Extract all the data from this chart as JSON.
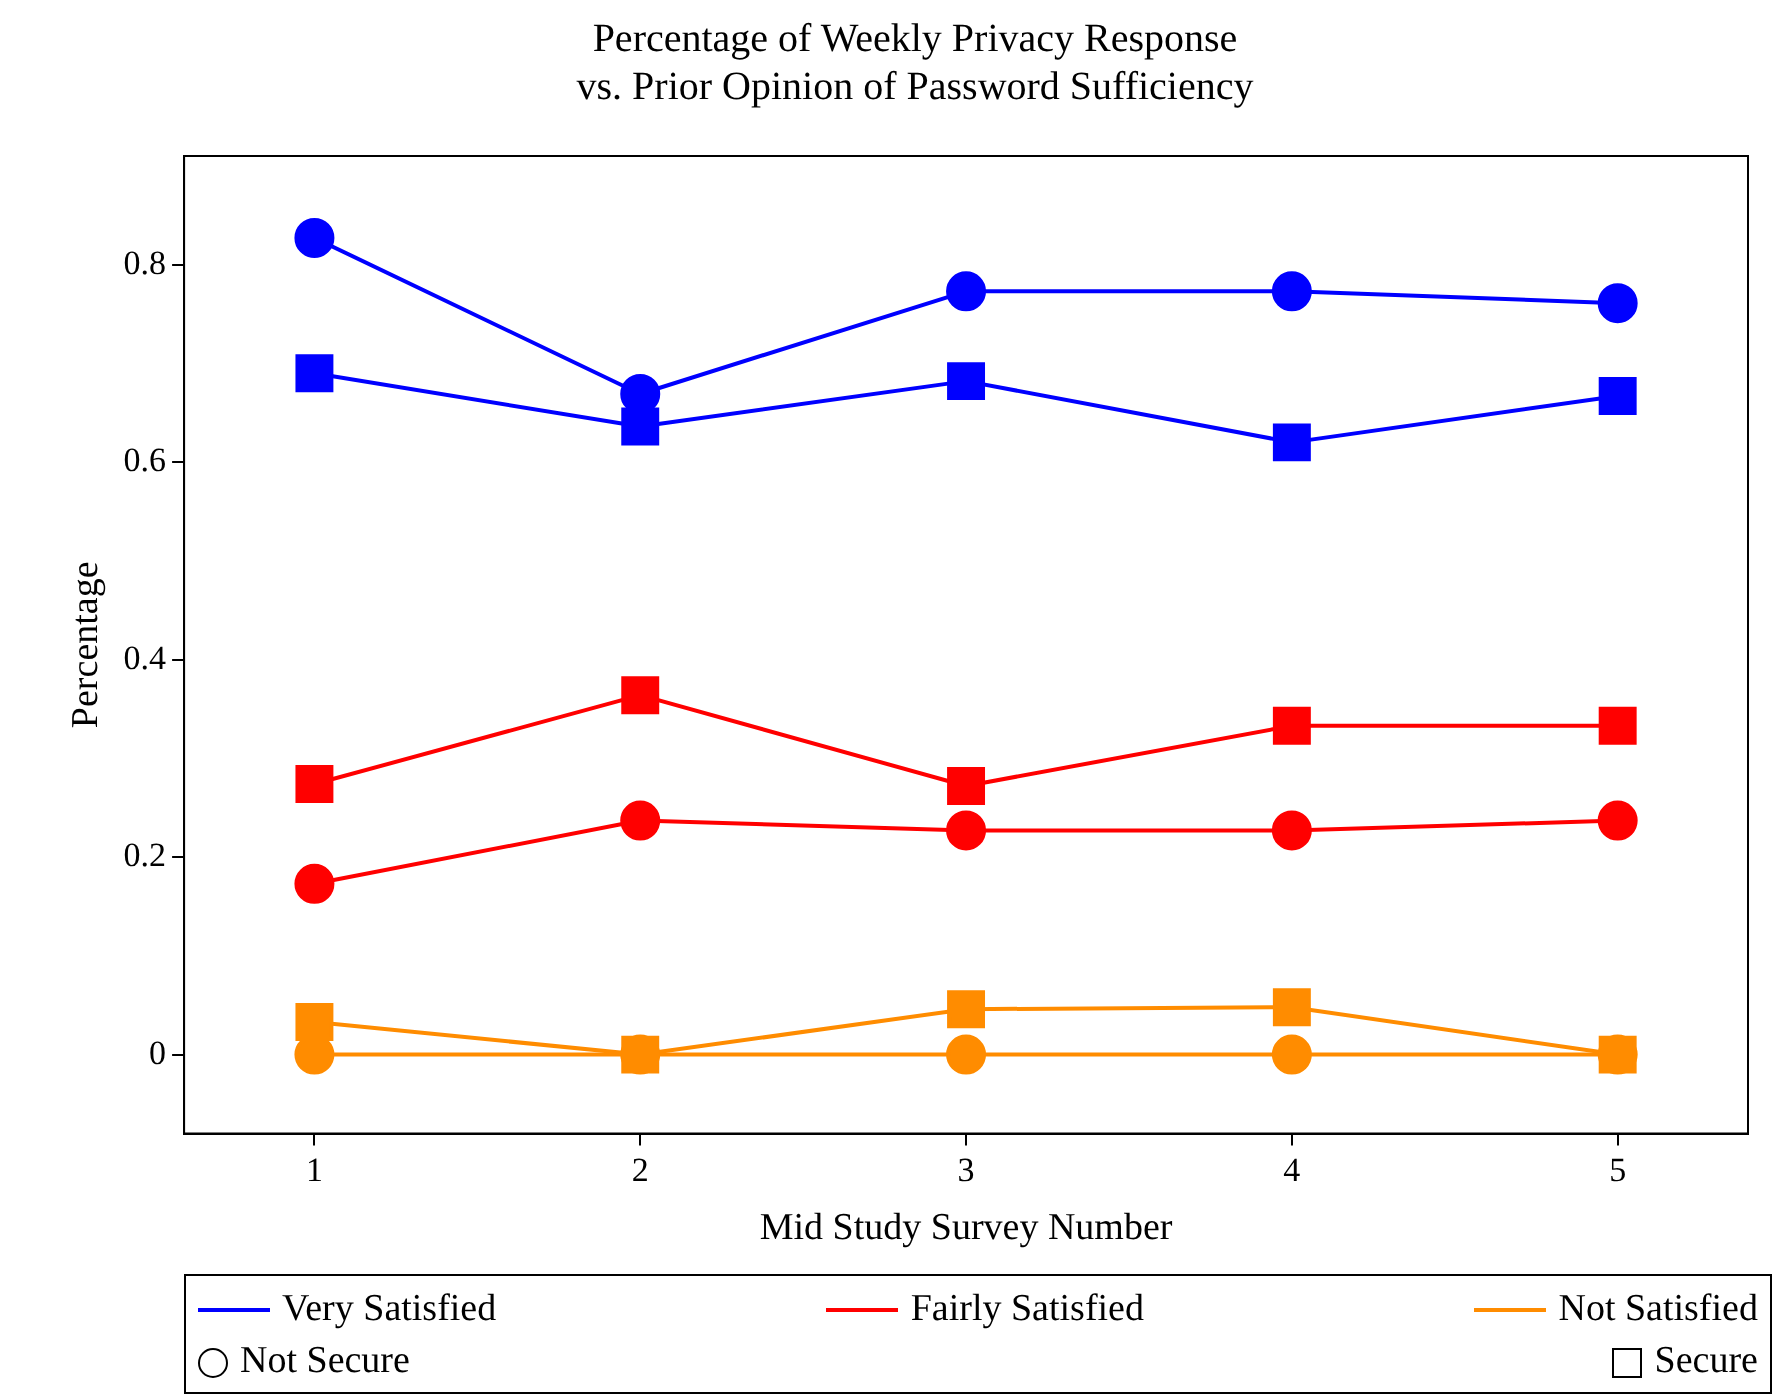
{
  "chart_data": {
    "type": "line",
    "title": "Percentage of Weekly Privacy Response\nvs. Prior Opinion of Password Sufficiency",
    "xlabel": "Mid Study Survey Number",
    "ylabel": "Percentage",
    "x": [
      1,
      2,
      3,
      4,
      5
    ],
    "xlim": [
      0.6,
      5.4
    ],
    "xticks": [
      1,
      2,
      3,
      4,
      5
    ],
    "ylim": [
      -0.08,
      0.91
    ],
    "yticks": [
      0,
      0.2,
      0.4,
      0.6,
      0.8
    ],
    "grid": false,
    "legend": "bottom",
    "line_style": "solid",
    "series": [
      {
        "name": "Very Satisfied",
        "color": "#0000ff",
        "marker": "circle",
        "values": [
          0.827,
          0.669,
          0.773,
          0.773,
          0.761
        ]
      },
      {
        "color": "#0000ff",
        "marker": "square",
        "values": [
          0.69,
          0.636,
          0.682,
          0.62,
          0.667
        ]
      },
      {
        "name": "Fairly Satisfied",
        "color": "#ff0000",
        "marker": "square",
        "values": [
          0.274,
          0.364,
          0.272,
          0.333,
          0.333
        ]
      },
      {
        "color": "#ff0000",
        "marker": "circle",
        "values": [
          0.173,
          0.237,
          0.227,
          0.227,
          0.237
        ]
      },
      {
        "name": "Not Satisfied",
        "color": "#ff8c00",
        "marker": "square",
        "values": [
          0.033,
          0,
          0.046,
          0.048,
          0
        ]
      },
      {
        "color": "#ff8c00",
        "marker": "circle",
        "values": [
          0,
          0,
          0,
          0,
          0
        ]
      },
      {
        "name": "Not Secure",
        "color": "#000000",
        "marker": "circle",
        "values": [
          null,
          null,
          null,
          null,
          null
        ]
      },
      {
        "name": "Secure",
        "color": "#000000",
        "marker": "square",
        "values": [
          null,
          null,
          null,
          null,
          null
        ]
      }
    ]
  }
}
